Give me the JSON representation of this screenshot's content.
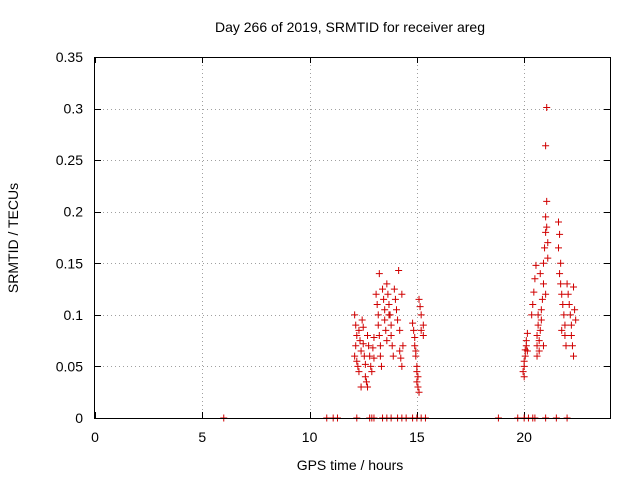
{
  "chart_data": {
    "type": "scatter",
    "title": "Day 266 of 2019, SRMTID for receiver areg",
    "xlabel": "GPS time / hours",
    "ylabel": "SRMTID / TECUs",
    "xlim": [
      0,
      24
    ],
    "ylim": [
      0,
      0.35
    ],
    "grid": true,
    "marker": "+",
    "color": "#d00000",
    "x_ticks": [
      0,
      5,
      10,
      15,
      20
    ],
    "x_tick_labels": [
      "0",
      "5",
      "10",
      "15",
      "20"
    ],
    "y_ticks": [
      0,
      0.05,
      0.1,
      0.15,
      0.2,
      0.25,
      0.3,
      0.35
    ],
    "y_tick_labels": [
      "0",
      "0.05",
      "0.1",
      "0.15",
      "0.2",
      "0.25",
      "0.3",
      "0.35"
    ],
    "series": [
      {
        "name": "SRMTID",
        "points": [
          [
            6.0,
            0
          ],
          [
            10.8,
            0
          ],
          [
            11.1,
            0
          ],
          [
            11.3,
            0
          ],
          [
            12.2,
            0
          ],
          [
            12.8,
            0
          ],
          [
            12.9,
            0
          ],
          [
            13.0,
            0
          ],
          [
            13.4,
            0
          ],
          [
            13.6,
            0
          ],
          [
            13.8,
            0
          ],
          [
            14.1,
            0
          ],
          [
            14.3,
            0
          ],
          [
            14.5,
            0
          ],
          [
            14.8,
            0
          ],
          [
            15.0,
            0
          ],
          [
            15.2,
            0
          ],
          [
            15.4,
            0
          ],
          [
            18.8,
            0
          ],
          [
            19.7,
            0
          ],
          [
            20.0,
            0
          ],
          [
            20.2,
            0
          ],
          [
            20.4,
            0
          ],
          [
            20.5,
            0
          ],
          [
            21.0,
            0
          ],
          [
            21.5,
            0
          ],
          [
            22.0,
            0
          ],
          [
            12.1,
            0.1
          ],
          [
            12.15,
            0.09
          ],
          [
            12.2,
            0.08
          ],
          [
            12.15,
            0.07
          ],
          [
            12.1,
            0.06
          ],
          [
            12.2,
            0.055
          ],
          [
            12.25,
            0.05
          ],
          [
            12.3,
            0.045
          ],
          [
            12.3,
            0.085
          ],
          [
            12.35,
            0.075
          ],
          [
            12.4,
            0.065
          ],
          [
            12.45,
            0.095
          ],
          [
            12.5,
            0.088
          ],
          [
            12.5,
            0.072
          ],
          [
            12.55,
            0.06
          ],
          [
            12.6,
            0.052
          ],
          [
            12.6,
            0.04
          ],
          [
            12.65,
            0.035
          ],
          [
            12.7,
            0.03
          ],
          [
            12.7,
            0.08
          ],
          [
            12.75,
            0.07
          ],
          [
            12.8,
            0.06
          ],
          [
            12.85,
            0.05
          ],
          [
            12.9,
            0.045
          ],
          [
            12.95,
            0.068
          ],
          [
            13.0,
            0.058
          ],
          [
            13.0,
            0.078
          ],
          [
            12.4,
            0.03
          ],
          [
            13.1,
            0.12
          ],
          [
            13.15,
            0.11
          ],
          [
            13.2,
            0.1
          ],
          [
            13.2,
            0.09
          ],
          [
            13.25,
            0.08
          ],
          [
            13.3,
            0.07
          ],
          [
            13.3,
            0.06
          ],
          [
            13.35,
            0.05
          ],
          [
            13.4,
            0.125
          ],
          [
            13.45,
            0.115
          ],
          [
            13.5,
            0.105
          ],
          [
            13.5,
            0.095
          ],
          [
            13.55,
            0.085
          ],
          [
            13.6,
            0.13
          ],
          [
            13.6,
            0.075
          ],
          [
            13.65,
            0.12
          ],
          [
            13.7,
            0.11
          ],
          [
            13.75,
            0.1
          ],
          [
            13.8,
            0.09
          ],
          [
            13.8,
            0.08
          ],
          [
            13.85,
            0.07
          ],
          [
            13.9,
            0.06
          ],
          [
            13.95,
            0.125
          ],
          [
            14.0,
            0.115
          ],
          [
            14.05,
            0.105
          ],
          [
            14.1,
            0.095
          ],
          [
            14.15,
            0.143
          ],
          [
            14.2,
            0.065
          ],
          [
            14.25,
            0.058
          ],
          [
            14.3,
            0.05
          ],
          [
            14.2,
            0.085
          ],
          [
            14.35,
            0.07
          ],
          [
            14.3,
            0.12
          ],
          [
            13.25,
            0.14
          ],
          [
            13.7,
            0.1
          ],
          [
            14.8,
            0.092
          ],
          [
            14.85,
            0.085
          ],
          [
            14.9,
            0.078
          ],
          [
            14.9,
            0.07
          ],
          [
            14.95,
            0.06
          ],
          [
            15.0,
            0.05
          ],
          [
            15.0,
            0.045
          ],
          [
            15.05,
            0.04
          ],
          [
            15.0,
            0.035
          ],
          [
            15.05,
            0.03
          ],
          [
            15.1,
            0.025
          ],
          [
            15.1,
            0.115
          ],
          [
            15.15,
            0.108
          ],
          [
            15.2,
            0.1
          ],
          [
            15.2,
            0.085
          ],
          [
            15.3,
            0.09
          ],
          [
            15.3,
            0.08
          ],
          [
            14.95,
            0.065
          ],
          [
            19.95,
            0.045
          ],
          [
            20.0,
            0.05
          ],
          [
            20.0,
            0.055
          ],
          [
            20.05,
            0.06
          ],
          [
            20.05,
            0.066
          ],
          [
            20.1,
            0.07
          ],
          [
            20.1,
            0.075
          ],
          [
            20.15,
            0.082
          ],
          [
            20.0,
            0.04
          ],
          [
            20.15,
            0.065
          ],
          [
            20.35,
            0.1
          ],
          [
            20.4,
            0.11
          ],
          [
            20.45,
            0.122
          ],
          [
            20.5,
            0.135
          ],
          [
            20.55,
            0.148
          ],
          [
            20.6,
            0.07
          ],
          [
            20.6,
            0.08
          ],
          [
            20.65,
            0.09
          ],
          [
            20.7,
            0.075
          ],
          [
            20.7,
            0.065
          ],
          [
            20.75,
            0.085
          ],
          [
            20.8,
            0.095
          ],
          [
            20.8,
            0.105
          ],
          [
            20.85,
            0.115
          ],
          [
            20.9,
            0.13
          ],
          [
            20.9,
            0.15
          ],
          [
            20.95,
            0.165
          ],
          [
            21.0,
            0.18
          ],
          [
            21.0,
            0.195
          ],
          [
            21.05,
            0.21
          ],
          [
            21.05,
            0.185
          ],
          [
            21.1,
            0.17
          ],
          [
            21.1,
            0.155
          ],
          [
            21.0,
            0.264
          ],
          [
            21.05,
            0.301
          ],
          [
            20.6,
            0.06
          ],
          [
            20.65,
            0.1
          ],
          [
            20.9,
            0.07
          ],
          [
            21.0,
            0.12
          ],
          [
            20.75,
            0.14
          ],
          [
            21.6,
            0.19
          ],
          [
            21.65,
            0.178
          ],
          [
            21.6,
            0.165
          ],
          [
            21.7,
            0.15
          ],
          [
            21.65,
            0.14
          ],
          [
            21.7,
            0.13
          ],
          [
            21.75,
            0.12
          ],
          [
            21.8,
            0.11
          ],
          [
            21.85,
            0.1
          ],
          [
            21.9,
            0.09
          ],
          [
            21.9,
            0.08
          ],
          [
            21.95,
            0.07
          ],
          [
            22.0,
            0.13
          ],
          [
            22.05,
            0.12
          ],
          [
            22.1,
            0.11
          ],
          [
            22.15,
            0.1
          ],
          [
            22.2,
            0.09
          ],
          [
            22.2,
            0.08
          ],
          [
            22.25,
            0.07
          ],
          [
            22.3,
            0.06
          ],
          [
            22.3,
            0.127
          ],
          [
            22.35,
            0.105
          ],
          [
            22.4,
            0.095
          ],
          [
            21.75,
            0.085
          ]
        ]
      }
    ]
  }
}
